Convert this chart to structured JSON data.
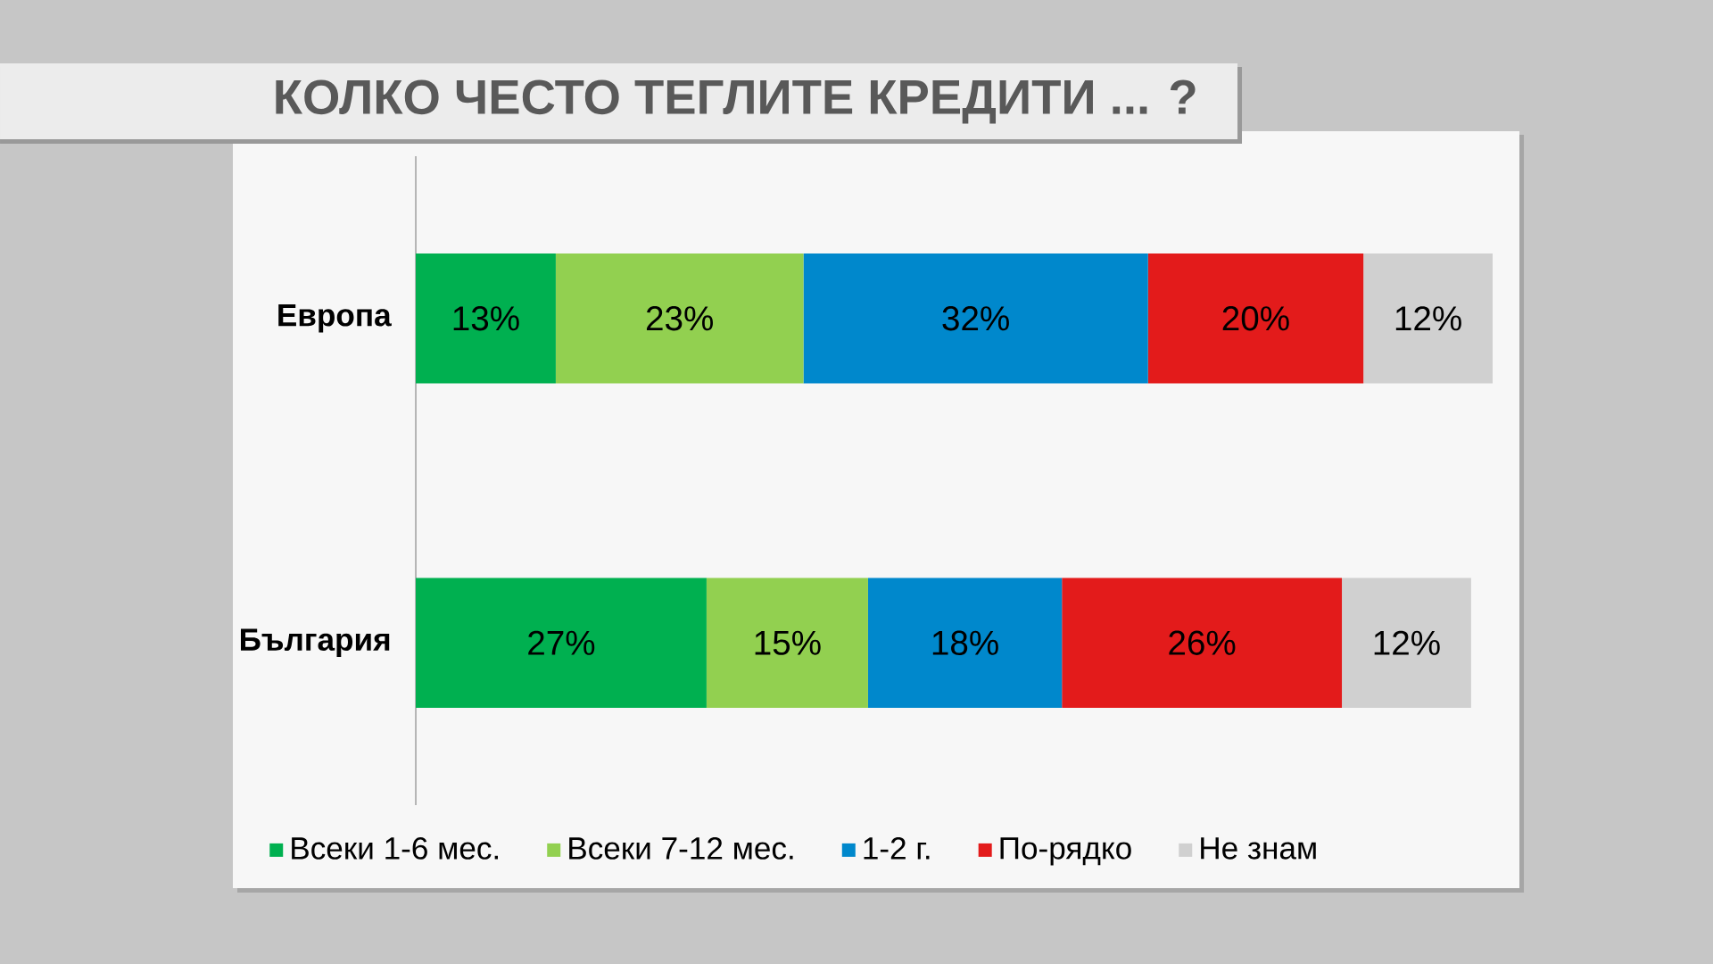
{
  "chart_data": {
    "type": "bar",
    "orientation": "horizontal",
    "stacked": true,
    "title": "КОЛКО ЧЕСТО ТЕГЛИТЕ КРЕДИТИ ... ?",
    "categories": [
      "Европа",
      "България"
    ],
    "series": [
      {
        "name": "Всеки 1-6 мес.",
        "color": "#00b050",
        "values": [
          13,
          27
        ],
        "value_labels": [
          "13%",
          "27%"
        ]
      },
      {
        "name": "Всеки 7-12 мес.",
        "color": "#92d050",
        "values": [
          23,
          15
        ],
        "value_labels": [
          "23%",
          "15%"
        ]
      },
      {
        "name": "1-2 г.",
        "color": "#0088cc",
        "values": [
          32,
          18
        ],
        "value_labels": [
          "32%",
          "18%"
        ]
      },
      {
        "name": "По-рядко",
        "color": "#e31b1b",
        "values": [
          20,
          26
        ],
        "value_labels": [
          "20%",
          "26%"
        ]
      },
      {
        "name": "Не знам",
        "color": "#d0d0d0",
        "values": [
          12,
          12
        ],
        "value_labels": [
          "12%",
          "12%"
        ]
      }
    ],
    "legend": "bottom"
  }
}
